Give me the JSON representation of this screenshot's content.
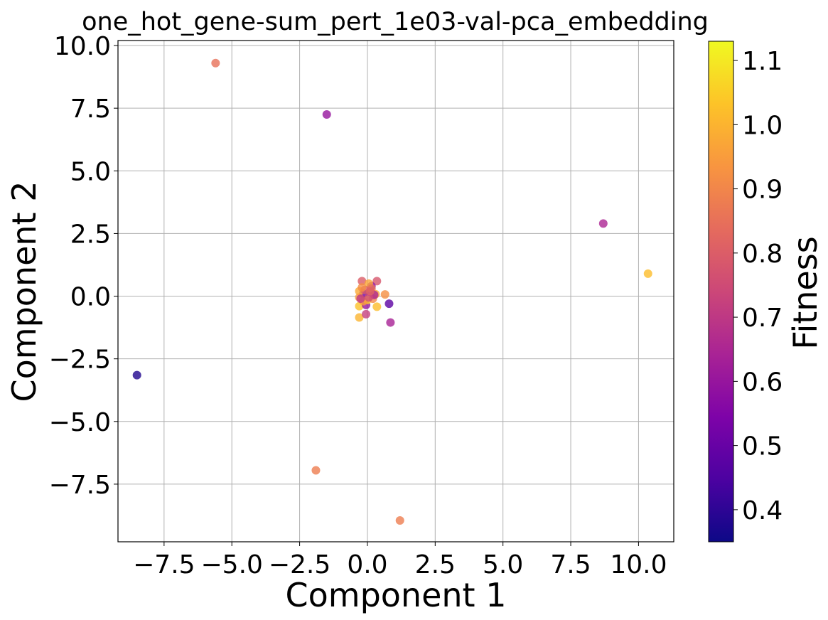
{
  "chart_data": {
    "type": "scatter",
    "title": "one_hot_gene-sum_pert_1e03-val-pca_embedding",
    "xlabel": "Component 1",
    "ylabel": "Component 2",
    "xlim": [
      -9.2,
      11.3
    ],
    "ylim": [
      -9.8,
      10.2
    ],
    "xticks": [
      -7.5,
      -5.0,
      -2.5,
      0.0,
      2.5,
      5.0,
      7.5,
      10.0
    ],
    "xtick_labels": [
      "−7.5",
      "−5.0",
      "−2.5",
      "0.0",
      "2.5",
      "5.0",
      "7.5",
      "10.0"
    ],
    "yticks": [
      -7.5,
      -5.0,
      -2.5,
      0.0,
      2.5,
      5.0,
      7.5,
      10.0
    ],
    "ytick_labels": [
      "−7.5",
      "−5.0",
      "−2.5",
      "0.0",
      "2.5",
      "5.0",
      "7.5",
      "10.0"
    ],
    "grid": true,
    "colormap": "plasma",
    "colorbar": {
      "label": "Fitness",
      "range": [
        0.35,
        1.13
      ],
      "ticks": [
        0.4,
        0.5,
        0.6,
        0.7,
        0.8,
        0.9,
        1.0,
        1.1
      ],
      "tick_labels": [
        "0.4",
        "0.5",
        "0.6",
        "0.7",
        "0.8",
        "0.9",
        "1.0",
        "1.1"
      ]
    },
    "points": [
      {
        "x": -5.6,
        "y": 9.3,
        "fitness": 0.85
      },
      {
        "x": -1.5,
        "y": 7.25,
        "fitness": 0.6
      },
      {
        "x": 8.7,
        "y": 2.9,
        "fitness": 0.65
      },
      {
        "x": 10.35,
        "y": 0.9,
        "fitness": 1.02
      },
      {
        "x": -8.5,
        "y": -3.15,
        "fitness": 0.38
      },
      {
        "x": -1.9,
        "y": -6.95,
        "fitness": 0.88
      },
      {
        "x": 1.2,
        "y": -8.95,
        "fitness": 0.88
      },
      {
        "x": 0.8,
        "y": -0.3,
        "fitness": 0.48
      },
      {
        "x": 0.85,
        "y": -1.05,
        "fitness": 0.64
      },
      {
        "x": -0.3,
        "y": -0.85,
        "fitness": 1.0
      },
      {
        "x": -0.05,
        "y": -0.72,
        "fitness": 0.72
      },
      {
        "x": 0.35,
        "y": 0.6,
        "fitness": 0.78
      },
      {
        "x": -0.2,
        "y": 0.6,
        "fitness": 0.8
      },
      {
        "x": 0.65,
        "y": 0.07,
        "fitness": 0.92
      },
      {
        "x": 0.35,
        "y": -0.42,
        "fitness": 1.02
      },
      {
        "x": -0.3,
        "y": -0.4,
        "fitness": 1.03
      },
      {
        "x": 0.15,
        "y": 0.4,
        "fitness": 0.6
      },
      {
        "x": 0.1,
        "y": 0.18,
        "fitness": 0.55
      },
      {
        "x": -0.15,
        "y": 0.1,
        "fitness": 0.5
      },
      {
        "x": -0.05,
        "y": -0.35,
        "fitness": 0.6
      },
      {
        "x": -0.3,
        "y": 0.2,
        "fitness": 0.98
      },
      {
        "x": -0.3,
        "y": -0.05,
        "fitness": 0.95
      },
      {
        "x": 0.05,
        "y": 0.5,
        "fitness": 0.97
      },
      {
        "x": 0.3,
        "y": 0.08,
        "fitness": 0.98
      },
      {
        "x": 0.0,
        "y": -0.15,
        "fitness": 1.05
      },
      {
        "x": -0.15,
        "y": -0.2,
        "fitness": 0.95
      },
      {
        "x": 0.2,
        "y": -0.1,
        "fitness": 0.9
      },
      {
        "x": -0.25,
        "y": -0.1,
        "fitness": 0.7
      },
      {
        "x": 0.15,
        "y": 0.3,
        "fitness": 0.85
      },
      {
        "x": -0.1,
        "y": 0.25,
        "fitness": 0.8
      },
      {
        "x": 0.25,
        "y": 0.05,
        "fitness": 0.65
      },
      {
        "x": 0.05,
        "y": -0.05,
        "fitness": 0.75
      },
      {
        "x": 0.1,
        "y": 0.2,
        "fitness": 0.82
      },
      {
        "x": -0.2,
        "y": 0.35,
        "fitness": 0.92
      }
    ]
  }
}
